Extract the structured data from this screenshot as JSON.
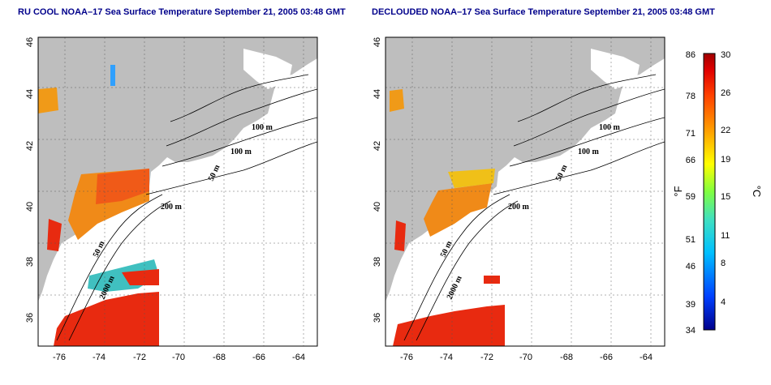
{
  "titles": {
    "left": "RU COOL NOAA–17 Sea Surface Temperature September 21, 2005 03:48 GMT",
    "right": "DECLOUDED NOAA–17 Sea Surface Temperature September 21, 2005 03:48 GMT"
  },
  "axes": {
    "lat_ticks": [
      "46",
      "44",
      "42",
      "40",
      "38",
      "36"
    ],
    "lon_ticks": [
      "-76",
      "-74",
      "-72",
      "-70",
      "-68",
      "-66",
      "-64"
    ]
  },
  "contour_labels": {
    "left": [
      "100 m",
      "100 m",
      "50 m",
      "200 m",
      "50 m",
      "2000 m"
    ],
    "right": [
      "100 m",
      "100 m",
      "50 m",
      "200 m",
      "50 m",
      "2000 m"
    ]
  },
  "colorbar": {
    "fahrenheit_ticks": [
      "86",
      "78",
      "71",
      "66",
      "59",
      "51",
      "46",
      "39",
      "34"
    ],
    "celsius_ticks": [
      "30",
      "26",
      "22",
      "19",
      "15",
      "11",
      "8",
      "4"
    ],
    "fahrenheit_unit": "°F",
    "celsius_unit": "°C",
    "colors": [
      "#00008b",
      "#0040ff",
      "#00c0ff",
      "#40e0c0",
      "#80ff40",
      "#ffff00",
      "#ffa000",
      "#ff4000",
      "#e00000",
      "#a00000"
    ]
  },
  "colors": {
    "land": "#bebebe",
    "warm_sst": "#e82a10",
    "orange_sst": "#f08a18",
    "title": "#00008b"
  }
}
